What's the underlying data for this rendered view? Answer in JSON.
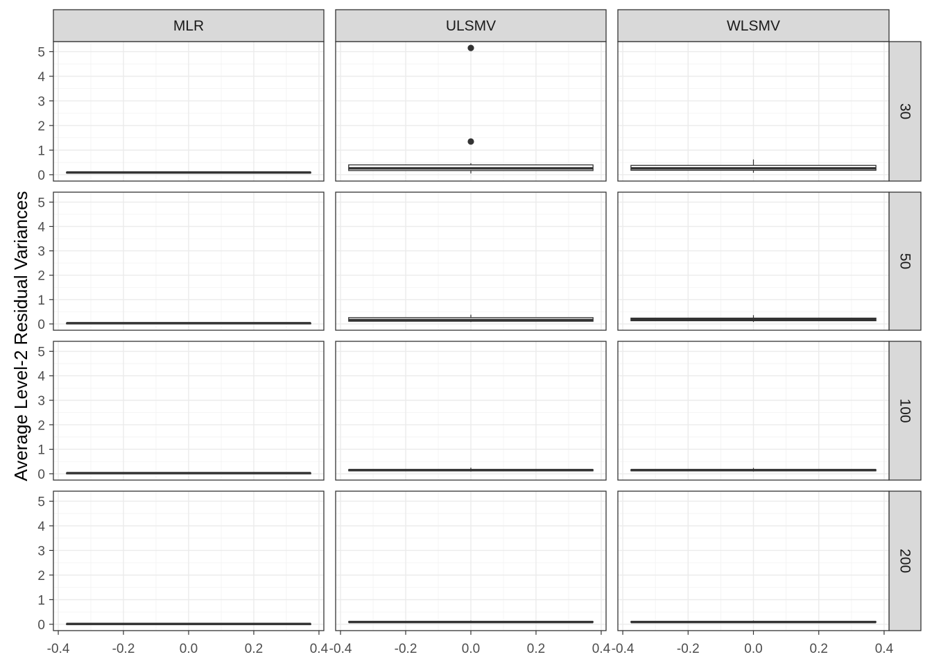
{
  "chart_data": {
    "type": "boxplot",
    "facet_columns": [
      "MLR",
      "ULSMV",
      "WLSMV"
    ],
    "facet_rows": [
      "30",
      "50",
      "100",
      "200"
    ],
    "xlim": [
      -0.4,
      0.4
    ],
    "ylim": [
      0,
      5
    ],
    "x_ticks": [
      -0.4,
      -0.2,
      0.0,
      0.2,
      0.4
    ],
    "x_tick_labels": [
      "-0.4",
      "-0.2",
      "0.0",
      "0.2",
      "0.4"
    ],
    "y_ticks": [
      0,
      1,
      2,
      3,
      4,
      5
    ],
    "y_tick_labels": [
      "0",
      "1",
      "2",
      "3",
      "4",
      "5"
    ],
    "xlabel": "",
    "ylabel": "Average Level-2 Residual Variances",
    "grid": true,
    "theme": "bw",
    "box_x_range": [
      -0.375,
      0.375
    ],
    "panels": [
      {
        "column": "MLR",
        "row": "30",
        "min": 0.07,
        "q1": 0.08,
        "median": 0.09,
        "q3": 0.1,
        "max": 0.11,
        "outliers": []
      },
      {
        "column": "ULSMV",
        "row": "30",
        "min": 0.05,
        "q1": 0.17,
        "median": 0.26,
        "q3": 0.4,
        "max": 0.47,
        "outliers": [
          1.35,
          5.15
        ]
      },
      {
        "column": "WLSMV",
        "row": "30",
        "min": 0.08,
        "q1": 0.18,
        "median": 0.26,
        "q3": 0.38,
        "max": 0.62,
        "outliers": []
      },
      {
        "column": "MLR",
        "row": "50",
        "min": 0.02,
        "q1": 0.025,
        "median": 0.03,
        "q3": 0.035,
        "max": 0.04,
        "outliers": []
      },
      {
        "column": "ULSMV",
        "row": "50",
        "min": 0.08,
        "q1": 0.11,
        "median": 0.16,
        "q3": 0.26,
        "max": 0.38,
        "outliers": []
      },
      {
        "column": "WLSMV",
        "row": "50",
        "min": 0.08,
        "q1": 0.13,
        "median": 0.18,
        "q3": 0.24,
        "max": 0.36,
        "outliers": []
      },
      {
        "column": "MLR",
        "row": "100",
        "min": 0.015,
        "q1": 0.02,
        "median": 0.025,
        "q3": 0.03,
        "max": 0.035,
        "outliers": []
      },
      {
        "column": "ULSMV",
        "row": "100",
        "min": 0.09,
        "q1": 0.12,
        "median": 0.15,
        "q3": 0.17,
        "max": 0.25,
        "outliers": []
      },
      {
        "column": "WLSMV",
        "row": "100",
        "min": 0.09,
        "q1": 0.12,
        "median": 0.15,
        "q3": 0.17,
        "max": 0.24,
        "outliers": []
      },
      {
        "column": "MLR",
        "row": "200",
        "min": 0.005,
        "q1": 0.01,
        "median": 0.015,
        "q3": 0.02,
        "max": 0.025,
        "outliers": []
      },
      {
        "column": "ULSMV",
        "row": "200",
        "min": 0.07,
        "q1": 0.08,
        "median": 0.09,
        "q3": 0.11,
        "max": 0.15,
        "outliers": []
      },
      {
        "column": "WLSMV",
        "row": "200",
        "min": 0.07,
        "q1": 0.08,
        "median": 0.09,
        "q3": 0.11,
        "max": 0.15,
        "outliers": []
      }
    ]
  }
}
